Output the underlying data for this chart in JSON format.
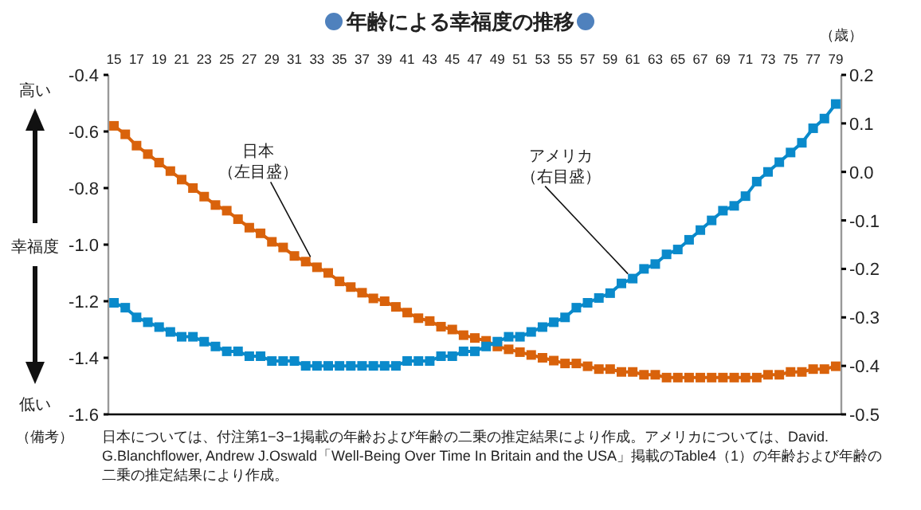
{
  "chart_data": {
    "type": "line",
    "title": "年齢による幸福度の推移",
    "xlabel": "（歳）",
    "ylabel": "幸福度",
    "annotations": [
      "高い",
      "低い",
      "（備考）",
      "日本については、付注第1−3−1掲載の年齢および年齢の二乗の推定結果により作成。アメリカについては、David. G.Blanchflower, Andrew J.Oswald「Well-Being Over Time In Britain and the USA」掲載のTable4（1）の年齢および年齢の二乗の推定結果により作成。"
    ],
    "x": [
      15,
      16,
      17,
      18,
      19,
      20,
      21,
      22,
      23,
      24,
      25,
      26,
      27,
      28,
      29,
      30,
      31,
      32,
      33,
      34,
      35,
      36,
      37,
      38,
      39,
      40,
      41,
      42,
      43,
      44,
      45,
      46,
      47,
      48,
      49,
      50,
      51,
      52,
      53,
      54,
      55,
      56,
      57,
      58,
      59,
      60,
      61,
      62,
      63,
      64,
      65,
      66,
      67,
      68,
      69,
      70,
      71,
      72,
      73,
      74,
      75,
      76,
      77,
      78,
      79
    ],
    "series": [
      {
        "name": "日本（左目盛）",
        "color": "#d9620b",
        "values": [
          -0.58,
          -0.61,
          -0.65,
          -0.68,
          -0.71,
          -0.74,
          -0.77,
          -0.8,
          -0.83,
          -0.86,
          -0.88,
          -0.91,
          -0.94,
          -0.96,
          -0.99,
          -1.01,
          -1.04,
          -1.06,
          -1.08,
          -1.1,
          -1.13,
          -1.15,
          -1.17,
          -1.19,
          -1.2,
          -1.22,
          -1.24,
          -1.26,
          -1.27,
          -1.29,
          -1.3,
          -1.32,
          -1.33,
          -1.34,
          -1.36,
          -1.37,
          -1.38,
          -1.39,
          -1.4,
          -1.41,
          -1.42,
          -1.42,
          -1.43,
          -1.44,
          -1.44,
          -1.45,
          -1.45,
          -1.46,
          -1.46,
          -1.47,
          -1.47,
          -1.47,
          -1.47,
          -1.47,
          -1.47,
          -1.47,
          -1.47,
          -1.47,
          -1.46,
          -1.46,
          -1.45,
          -1.45,
          -1.44,
          -1.44,
          -1.43
        ]
      },
      {
        "name": "アメリカ（右目盛）",
        "color": "#0a8acb",
        "axis": "y2",
        "values": [
          -0.27,
          -0.28,
          -0.3,
          -0.31,
          -0.32,
          -0.33,
          -0.34,
          -0.34,
          -0.35,
          -0.36,
          -0.37,
          -0.37,
          -0.38,
          -0.38,
          -0.39,
          -0.39,
          -0.39,
          -0.4,
          -0.4,
          -0.4,
          -0.4,
          -0.4,
          -0.4,
          -0.4,
          -0.4,
          -0.4,
          -0.39,
          -0.39,
          -0.39,
          -0.38,
          -0.38,
          -0.37,
          -0.37,
          -0.36,
          -0.35,
          -0.34,
          -0.34,
          -0.33,
          -0.32,
          -0.31,
          -0.3,
          -0.28,
          -0.27,
          -0.26,
          -0.25,
          -0.23,
          -0.22,
          -0.2,
          -0.19,
          -0.17,
          -0.16,
          -0.14,
          -0.12,
          -0.1,
          -0.08,
          -0.07,
          -0.05,
          -0.02,
          0.0,
          0.02,
          0.04,
          0.06,
          0.09,
          0.11,
          0.14
        ]
      }
    ],
    "xlim": [
      14.5,
      79.5
    ],
    "xticks": [
      15,
      17,
      19,
      21,
      23,
      25,
      27,
      29,
      31,
      33,
      35,
      37,
      39,
      41,
      43,
      45,
      47,
      49,
      51,
      53,
      55,
      57,
      59,
      61,
      63,
      65,
      67,
      69,
      71,
      73,
      75,
      77,
      79
    ],
    "ylim": [
      -1.6,
      -0.4
    ],
    "yticks": [
      -1.6,
      -1.4,
      -1.2,
      {
        "value": -1,
        "label": "-1.0"
      },
      -0.8,
      -0.6,
      -0.4
    ],
    "y2lim": [
      -0.5,
      0.2
    ],
    "y2ticks": [
      -0.5,
      -0.4,
      -0.3,
      -0.2,
      -0.1,
      {
        "value": 0,
        "label": "0.0"
      },
      0.1,
      0.2
    ],
    "marker": "square",
    "line_style": "solid",
    "legend": false,
    "grid": false
  }
}
